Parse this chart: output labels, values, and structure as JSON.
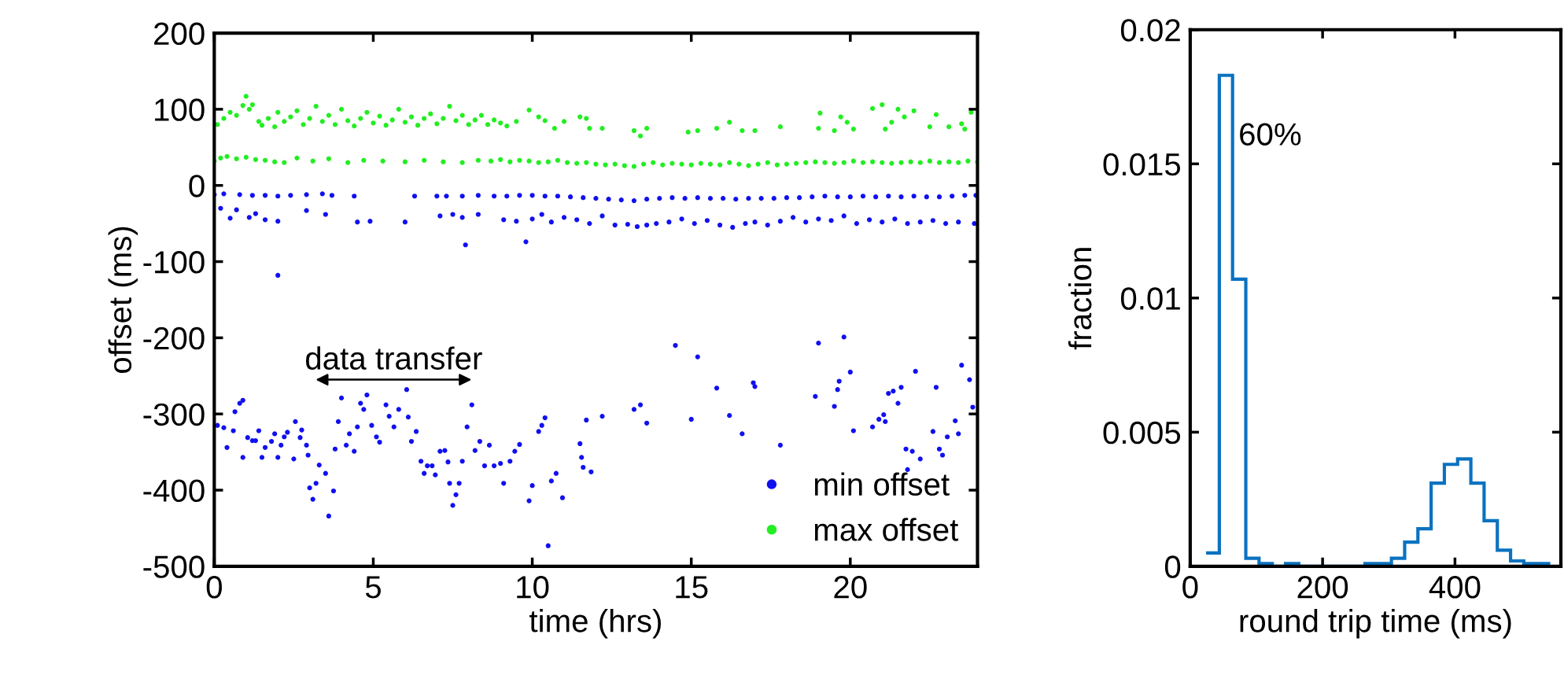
{
  "chart_data": [
    {
      "type": "scatter",
      "xlabel": "time (hrs)",
      "ylabel": "offset (ms)",
      "xlim": [
        0,
        24
      ],
      "xticks": [
        0,
        5,
        10,
        15,
        20
      ],
      "ylim": [
        -500,
        200
      ],
      "yticks": [
        -500,
        -400,
        -300,
        -200,
        -100,
        0,
        100,
        200
      ],
      "legend": "bottom right",
      "marker": "circle",
      "grid": false,
      "annotations": [
        "data transfer"
      ],
      "series": [
        {
          "name": "min offset",
          "color": "#1010f0",
          "x": [
            0.1,
            0.3,
            0.4,
            0.6,
            0.65,
            0.8,
            0.9,
            0.9,
            1.05,
            1.2,
            1.3,
            1.4,
            1.5,
            1.6,
            1.8,
            1.9,
            2.0,
            2.1,
            2.2,
            2.3,
            2.5,
            2.55,
            2.7,
            2.75,
            2.9,
            2.95,
            3.0,
            3.1,
            3.2,
            3.3,
            3.5,
            3.6,
            3.75,
            3.8,
            3.9,
            4.0,
            4.15,
            4.25,
            4.4,
            4.5,
            4.6,
            4.7,
            4.8,
            4.95,
            5.1,
            5.2,
            5.4,
            5.5,
            5.65,
            5.8,
            6.05,
            6.1,
            6.2,
            6.35,
            6.5,
            6.6,
            6.7,
            6.85,
            6.95,
            7.1,
            7.25,
            7.35,
            7.4,
            7.5,
            7.6,
            7.7,
            7.8,
            7.95,
            8.1,
            8.2,
            8.35,
            8.5,
            8.65,
            8.8,
            9.0,
            9.1,
            9.3,
            9.45,
            9.6,
            9.9,
            10.0,
            10.2,
            10.3,
            10.4,
            10.5,
            10.6,
            10.75,
            10.95,
            11.5,
            11.55,
            11.6,
            11.7,
            11.85,
            12.2,
            13.2,
            13.4,
            13.6,
            14.5,
            15.0,
            15.2,
            15.8,
            16.2,
            16.6,
            16.95,
            17.0,
            17.8,
            18.9,
            19.0,
            19.5,
            19.6,
            19.65,
            19.8,
            20.0,
            20.1,
            20.7,
            20.9,
            21.05,
            21.1,
            21.2,
            21.35,
            21.5,
            21.6,
            21.75,
            21.8,
            21.95,
            22.05,
            22.2,
            22.6,
            22.7,
            22.8,
            22.9,
            23.05,
            23.3,
            23.4,
            23.5,
            23.75,
            23.85,
            2.0,
            0.0,
            0.3,
            0.8,
            1.2,
            1.6,
            2.0,
            2.4,
            2.9,
            3.4,
            3.7,
            4.4,
            6.3,
            7.0,
            7.3,
            7.8,
            8.3,
            8.8,
            9.2,
            9.6,
            10.0,
            10.4,
            10.8,
            11.2,
            11.6,
            12.0,
            12.4,
            12.8,
            13.2,
            13.6,
            14.0,
            14.4,
            14.8,
            15.2,
            15.6,
            16.0,
            16.4,
            16.8,
            17.2,
            17.6,
            18.0,
            18.4,
            18.8,
            19.2,
            19.6,
            20.0,
            20.4,
            20.8,
            21.2,
            21.6,
            22.0,
            22.4,
            22.8,
            23.2,
            23.6,
            23.95,
            0.2,
            0.5,
            0.7,
            1.1,
            1.3,
            1.6,
            2.0,
            2.9,
            3.5,
            4.5,
            4.9,
            6.0,
            7.1,
            7.5,
            7.8,
            8.3,
            9.1,
            9.5,
            9.8,
            7.9,
            10.0,
            10.3,
            10.6,
            11.0,
            11.4,
            11.8,
            12.2,
            12.6,
            13.0,
            13.3,
            13.6,
            13.9,
            14.3,
            14.7,
            15.1,
            15.5,
            15.9,
            16.3,
            16.7,
            17.0,
            17.4,
            17.8,
            18.2,
            18.6,
            19.0,
            19.4,
            19.8,
            20.2,
            20.6,
            21.0,
            21.4,
            21.8,
            22.2,
            22.6,
            23.0,
            23.4,
            23.9
          ],
          "values": [
            -315,
            -318,
            -344,
            -322,
            -297,
            -286,
            -282,
            -357,
            -331,
            -335,
            -335,
            -322,
            -357,
            -344,
            -336,
            -326,
            -357,
            -341,
            -330,
            -324,
            -359,
            -310,
            -331,
            -321,
            -341,
            -354,
            -397,
            -412,
            -391,
            -367,
            -378,
            -434,
            -401,
            -346,
            -310,
            -279,
            -341,
            -326,
            -349,
            -317,
            -286,
            -294,
            -275,
            -315,
            -330,
            -337,
            -288,
            -303,
            -317,
            -294,
            -268,
            -304,
            -336,
            -323,
            -362,
            -378,
            -368,
            -368,
            -380,
            -349,
            -348,
            -363,
            -391,
            -420,
            -406,
            -391,
            -362,
            -317,
            -288,
            -348,
            -336,
            -368,
            -341,
            -368,
            -365,
            -391,
            -362,
            -349,
            -340,
            -414,
            -394,
            -323,
            -315,
            -305,
            -473,
            -388,
            -378,
            -410,
            -339,
            -357,
            -370,
            -308,
            -376,
            -303,
            -294,
            -288,
            -312,
            -210,
            -307,
            -225,
            -266,
            -302,
            -326,
            -259,
            -264,
            -341,
            -277,
            -207,
            -290,
            -268,
            -257,
            -199,
            -245,
            -322,
            -317,
            -307,
            -301,
            -310,
            -273,
            -270,
            -286,
            -265,
            -346,
            -373,
            -349,
            -244,
            -359,
            -323,
            -265,
            -346,
            -354,
            -330,
            -309,
            -326,
            -236,
            -255,
            -291,
            -118,
            -12,
            -11,
            -12,
            -13,
            -13,
            -14,
            -13,
            -12,
            -11,
            -13,
            -14,
            -14,
            -14,
            -14,
            -14,
            -13,
            -14,
            -14,
            -13,
            -13,
            -14,
            -14,
            -15,
            -16,
            -17,
            -18,
            -19,
            -20,
            -18,
            -17,
            -16,
            -17,
            -16,
            -17,
            -17,
            -18,
            -17,
            -17,
            -17,
            -16,
            -16,
            -15,
            -14,
            -15,
            -15,
            -14,
            -15,
            -14,
            -15,
            -14,
            -15,
            -15,
            -14,
            -13,
            -13,
            -30,
            -43,
            -32,
            -42,
            -37,
            -45,
            -47,
            -33,
            -38,
            -48,
            -47,
            -48,
            -40,
            -38,
            -42,
            -38,
            -45,
            -47,
            -74,
            -78,
            -44,
            -38,
            -48,
            -42,
            -45,
            -50,
            -40,
            -52,
            -51,
            -54,
            -52,
            -50,
            -48,
            -44,
            -50,
            -46,
            -52,
            -55,
            -50,
            -48,
            -52,
            -47,
            -42,
            -48,
            -44,
            -46,
            -40,
            -50,
            -45,
            -48,
            -44,
            -50,
            -48,
            -46,
            -50,
            -48,
            -50
          ]
        },
        {
          "name": "max offset",
          "color": "#22ee22",
          "x": [
            0.1,
            0.3,
            0.5,
            0.7,
            0.9,
            1.0,
            1.1,
            1.2,
            1.4,
            1.5,
            1.7,
            1.9,
            2.0,
            2.2,
            2.4,
            2.6,
            2.8,
            3.0,
            3.2,
            3.4,
            3.6,
            3.8,
            4.0,
            4.2,
            4.4,
            4.6,
            4.8,
            5.0,
            5.2,
            5.4,
            5.6,
            5.8,
            6.0,
            6.2,
            6.4,
            6.6,
            6.8,
            7.0,
            7.2,
            7.4,
            7.6,
            7.8,
            8.0,
            8.2,
            8.4,
            8.6,
            8.8,
            9.0,
            9.2,
            9.5,
            9.9,
            10.2,
            10.4,
            10.7,
            11.0,
            11.5,
            11.7,
            11.8,
            12.2,
            13.2,
            13.4,
            13.6,
            14.9,
            15.2,
            15.8,
            16.2,
            16.6,
            17.0,
            17.8,
            19.0,
            19.05,
            19.5,
            19.7,
            19.9,
            20.1,
            20.7,
            21.0,
            21.1,
            21.3,
            21.5,
            21.7,
            22.0,
            22.5,
            22.7,
            23.1,
            23.5,
            23.6,
            23.8,
            0.0,
            0.2,
            0.4,
            0.7,
            1.0,
            1.3,
            1.6,
            1.9,
            2.2,
            2.6,
            3.1,
            3.6,
            4.2,
            4.7,
            5.3,
            6.0,
            6.6,
            7.2,
            7.8,
            8.3,
            8.7,
            9.0,
            9.3,
            9.6,
            9.9,
            10.2,
            10.5,
            10.8,
            11.1,
            11.4,
            11.7,
            12.0,
            12.3,
            12.6,
            12.9,
            13.2,
            13.5,
            13.8,
            14.1,
            14.4,
            14.7,
            15.0,
            15.3,
            15.6,
            15.9,
            16.2,
            16.5,
            16.8,
            17.1,
            17.4,
            17.7,
            18.0,
            18.3,
            18.6,
            18.9,
            19.2,
            19.5,
            19.8,
            20.1,
            20.4,
            20.7,
            21.0,
            21.3,
            21.6,
            21.9,
            22.2,
            22.5,
            22.8,
            23.1,
            23.4,
            23.7,
            24.0
          ],
          "values": [
            80,
            88,
            96,
            92,
            105,
            117,
            100,
            106,
            84,
            79,
            88,
            77,
            96,
            84,
            90,
            98,
            80,
            88,
            104,
            84,
            92,
            80,
            100,
            85,
            78,
            88,
            96,
            82,
            91,
            79,
            86,
            100,
            83,
            90,
            79,
            88,
            94,
            81,
            88,
            104,
            85,
            92,
            80,
            86,
            92,
            80,
            86,
            82,
            78,
            84,
            99,
            90,
            85,
            75,
            84,
            90,
            88,
            75,
            75,
            72,
            65,
            75,
            70,
            72,
            75,
            83,
            72,
            72,
            77,
            75,
            95,
            72,
            90,
            83,
            74,
            101,
            106,
            74,
            83,
            100,
            90,
            98,
            77,
            93,
            77,
            81,
            74,
            96,
            32,
            36,
            38,
            35,
            37,
            34,
            33,
            31,
            30,
            36,
            32,
            35,
            30,
            33,
            32,
            31,
            33,
            31,
            30,
            33,
            32,
            34,
            31,
            33,
            32,
            30,
            31,
            33,
            30,
            29,
            30,
            28,
            27,
            28,
            26,
            25,
            28,
            30,
            27,
            29,
            28,
            27,
            29,
            28,
            27,
            30,
            28,
            26,
            28,
            30,
            27,
            28,
            29,
            30,
            31,
            30,
            29,
            30,
            32,
            30,
            31,
            30,
            29,
            30,
            31,
            30,
            32,
            30,
            31,
            30,
            32,
            31
          ]
        }
      ]
    },
    {
      "type": "histogram",
      "xlabel": "round trip time (ms)",
      "ylabel": "fraction",
      "xlim": [
        0,
        560
      ],
      "xticks": [
        0,
        200,
        400
      ],
      "ylim": [
        0,
        0.02
      ],
      "yticks": [
        0,
        0.005,
        0.01,
        0.015,
        0.02
      ],
      "color": "#0a72c0",
      "grid": false,
      "annotations": [
        "60%"
      ],
      "bins": [
        24,
        44,
        64,
        84,
        104,
        124,
        144,
        164,
        184,
        204,
        224,
        244,
        264,
        284,
        304,
        324,
        344,
        364,
        384,
        404,
        424,
        444,
        464,
        484,
        504,
        524,
        544
      ],
      "values": [
        0.0005,
        0.0183,
        0.0107,
        0.0003,
        0.0001,
        0,
        0.0001,
        0,
        0,
        0,
        0,
        0,
        0.0001,
        0.0001,
        0.0003,
        0.0009,
        0.0014,
        0.0031,
        0.0038,
        0.004,
        0.0031,
        0.0017,
        0.0006,
        0.0002,
        0.0001,
        0.0001
      ]
    }
  ]
}
